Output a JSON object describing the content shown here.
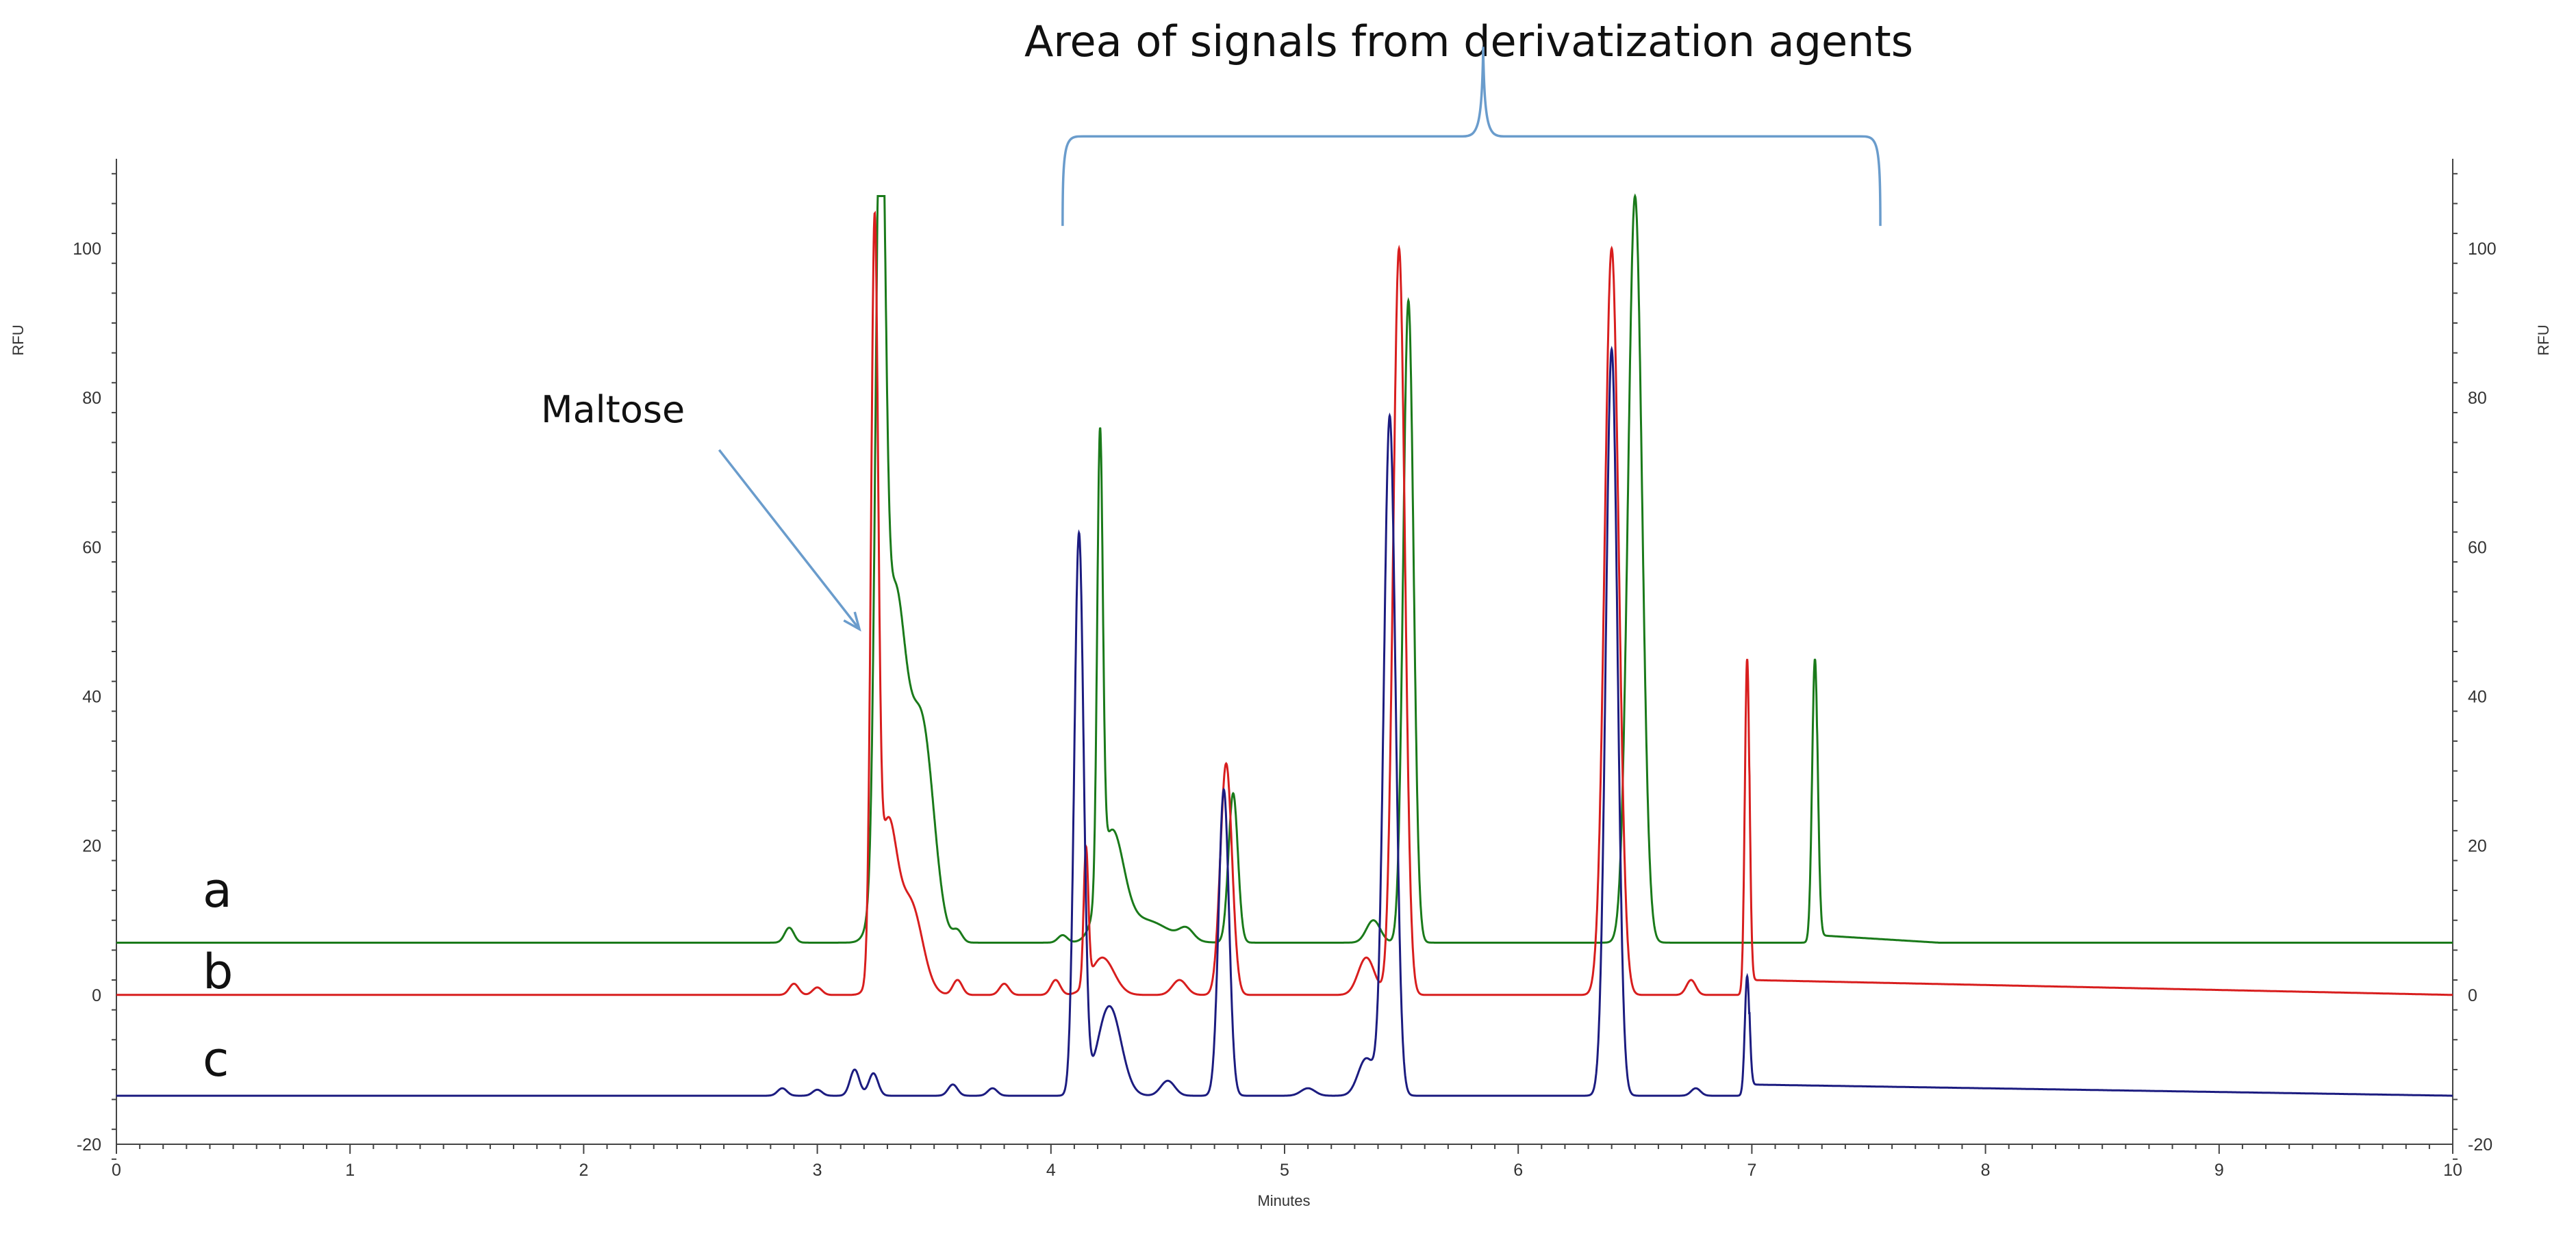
{
  "chart_data": {
    "type": "line",
    "title": "Area of signals from derivatization agents",
    "xlabel": "Minutes",
    "ylabel_left": "RFU",
    "ylabel_right": "RFU",
    "xlim": [
      0,
      10
    ],
    "ylim": [
      -20,
      112
    ],
    "x_ticks": [
      0,
      1,
      2,
      3,
      4,
      5,
      6,
      7,
      8,
      9,
      10
    ],
    "y_ticks": [
      -20,
      0,
      20,
      40,
      60,
      80,
      100
    ],
    "annotations": {
      "maltose_label": "Maltose",
      "maltose_arrow_tip": {
        "x": 3.18,
        "y": 49
      },
      "maltose_arrow_tail": {
        "x": 2.58,
        "y": 73
      },
      "bracket": {
        "x_start": 4.05,
        "x_end": 7.55,
        "x_peak": 5.85,
        "y_base": 103,
        "y_top": 115,
        "y_peak": 127
      }
    },
    "series": [
      {
        "name": "a",
        "label": "a",
        "color": "#1a7a1a",
        "baseline": 7,
        "peaks": [
          {
            "x": 2.88,
            "h": 2,
            "w": 0.02
          },
          {
            "x": 3.27,
            "h": 100,
            "w": 0.02
          },
          {
            "x": 3.33,
            "h": 46,
            "w": 0.05
          },
          {
            "x": 3.45,
            "h": 28,
            "w": 0.05
          },
          {
            "x": 3.6,
            "h": 1.5,
            "w": 0.02
          },
          {
            "x": 4.05,
            "h": 1,
            "w": 0.02
          },
          {
            "x": 4.21,
            "h": 60,
            "w": 0.012
          },
          {
            "x": 4.26,
            "h": 14,
            "w": 0.05
          },
          {
            "x": 4.4,
            "h": 3,
            "w": 0.1
          },
          {
            "x": 4.58,
            "h": 1.5,
            "w": 0.03
          },
          {
            "x": 4.78,
            "h": 20,
            "w": 0.02
          },
          {
            "x": 5.38,
            "h": 3,
            "w": 0.03
          },
          {
            "x": 5.53,
            "h": 86,
            "w": 0.022
          },
          {
            "x": 6.5,
            "h": 100,
            "w": 0.03
          },
          {
            "x": 7.27,
            "h": 38,
            "w": 0.012
          }
        ],
        "tail": {
          "x_start": 7.28,
          "x_end": 7.8,
          "level": 1
        }
      },
      {
        "name": "b",
        "label": "b",
        "color": "#d81e1e",
        "baseline": 0,
        "peaks": [
          {
            "x": 2.9,
            "h": 1.5,
            "w": 0.02
          },
          {
            "x": 3.0,
            "h": 1,
            "w": 0.02
          },
          {
            "x": 3.245,
            "h": 96,
            "w": 0.015
          },
          {
            "x": 3.3,
            "h": 22,
            "w": 0.04
          },
          {
            "x": 3.4,
            "h": 12,
            "w": 0.05
          },
          {
            "x": 3.6,
            "h": 2,
            "w": 0.02
          },
          {
            "x": 3.8,
            "h": 1.5,
            "w": 0.02
          },
          {
            "x": 4.02,
            "h": 2,
            "w": 0.02
          },
          {
            "x": 4.15,
            "h": 18,
            "w": 0.01
          },
          {
            "x": 4.22,
            "h": 5,
            "w": 0.05
          },
          {
            "x": 4.55,
            "h": 2,
            "w": 0.03
          },
          {
            "x": 4.75,
            "h": 31,
            "w": 0.025
          },
          {
            "x": 5.35,
            "h": 5,
            "w": 0.035
          },
          {
            "x": 5.49,
            "h": 100,
            "w": 0.025
          },
          {
            "x": 6.4,
            "h": 100,
            "w": 0.03
          },
          {
            "x": 6.74,
            "h": 2,
            "w": 0.02
          },
          {
            "x": 6.98,
            "h": 45,
            "w": 0.01
          }
        ],
        "tail": {
          "x_start": 6.99,
          "x_end": 10,
          "level": 2
        }
      },
      {
        "name": "c",
        "label": "c",
        "color": "#1c1c80",
        "baseline": -13.5,
        "peaks": [
          {
            "x": 2.85,
            "h": 1,
            "w": 0.02
          },
          {
            "x": 3.0,
            "h": 0.8,
            "w": 0.02
          },
          {
            "x": 3.16,
            "h": 3.5,
            "w": 0.02
          },
          {
            "x": 3.24,
            "h": 3,
            "w": 0.02
          },
          {
            "x": 3.58,
            "h": 1.5,
            "w": 0.02
          },
          {
            "x": 3.75,
            "h": 1,
            "w": 0.02
          },
          {
            "x": 4.12,
            "h": 75,
            "w": 0.02
          },
          {
            "x": 4.25,
            "h": 12,
            "w": 0.05
          },
          {
            "x": 4.5,
            "h": 2,
            "w": 0.03
          },
          {
            "x": 4.74,
            "h": 41,
            "w": 0.022
          },
          {
            "x": 5.1,
            "h": 1,
            "w": 0.03
          },
          {
            "x": 5.35,
            "h": 5,
            "w": 0.035
          },
          {
            "x": 5.45,
            "h": 91,
            "w": 0.025
          },
          {
            "x": 6.4,
            "h": 100,
            "w": 0.025
          },
          {
            "x": 6.76,
            "h": 1,
            "w": 0.02
          },
          {
            "x": 6.98,
            "h": 16,
            "w": 0.01
          }
        ],
        "tail": {
          "x_start": 6.99,
          "x_end": 10,
          "level": 1.5
        }
      }
    ],
    "clip_max": 107
  }
}
